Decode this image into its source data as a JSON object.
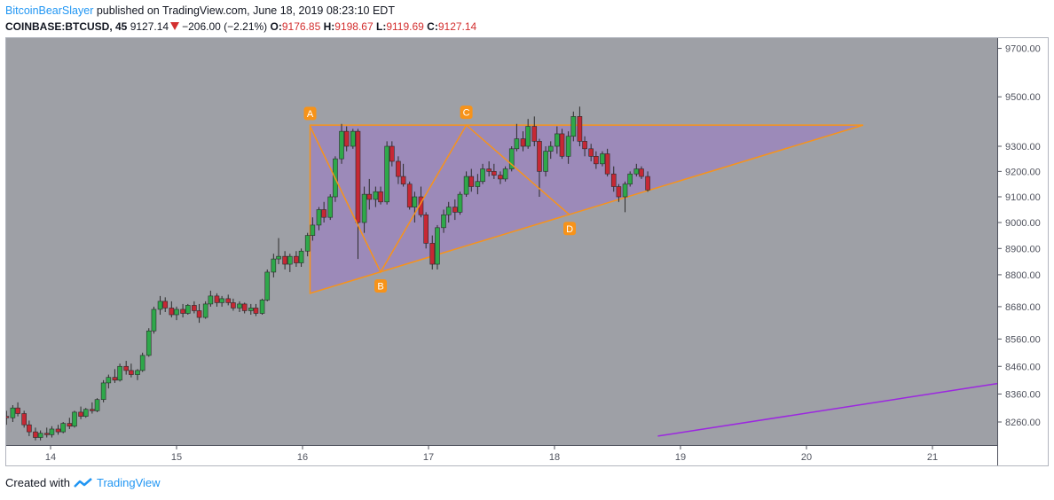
{
  "header": {
    "author": "BitcoinBearSlayer",
    "published_text": "published on TradingView.com, June 18, 2019 08:23:10 EDT",
    "symbol": "COINBASE:BTCUSD, 45",
    "price": "9127.14",
    "change": "−206.00 (−2.21%)",
    "open_label": "O:",
    "open": "9176.85",
    "high_label": "H:",
    "high": "9198.67",
    "low_label": "L:",
    "low": "9119.69",
    "close_label": "C:",
    "close": "9127.14"
  },
  "footer": {
    "created_with": "Created with",
    "brand": "TradingView"
  },
  "chart_data": {
    "type": "candlestick",
    "x_ticks": [
      "14",
      "15",
      "16",
      "17",
      "18",
      "19",
      "20",
      "21"
    ],
    "x_tick_days": [
      14,
      15,
      16,
      17,
      18,
      19,
      20,
      21
    ],
    "x_range": [
      13.65,
      21.55
    ],
    "y_ticks": [
      8260,
      8360,
      8460,
      8560,
      8680,
      8800,
      8900,
      9000,
      9100,
      9200,
      9300,
      9500,
      9700
    ],
    "y_tick_labels": [
      "8260.00",
      "8360.00",
      "8460.00",
      "8560.00",
      "8680.00",
      "8800.00",
      "8900.00",
      "9000.00",
      "9100.00",
      "9200.00",
      "9300.00",
      "9500.00",
      "9700.00"
    ],
    "scale": "log",
    "grid": false,
    "colors": {
      "background": "#9ea0a6",
      "up": "#2ea84a",
      "down": "#c62834",
      "pattern": "#f7931a",
      "fill": "#9a6fd0",
      "trendline": "#9c27e0"
    },
    "pattern_points": [
      {
        "label": "A",
        "day": 16.06,
        "price": 9380
      },
      {
        "label": "B",
        "day": 16.62,
        "price": 8810
      },
      {
        "label": "C",
        "day": 17.3,
        "price": 9385
      },
      {
        "label": "D",
        "day": 18.12,
        "price": 9030
      }
    ],
    "triangle": [
      {
        "day": 16.06,
        "price": 9385
      },
      {
        "day": 20.45,
        "price": 9385
      },
      {
        "day": 16.06,
        "price": 8730
      }
    ],
    "purple_trendline": [
      {
        "day": 18.82,
        "price": 8210
      },
      {
        "day": 21.55,
        "price": 8400
      }
    ],
    "candles": [
      [
        13.65,
        8280,
        8300,
        8250,
        8275
      ],
      [
        13.7,
        8275,
        8320,
        8260,
        8310
      ],
      [
        13.74,
        8310,
        8330,
        8280,
        8290
      ],
      [
        13.79,
        8290,
        8300,
        8240,
        8250
      ],
      [
        13.83,
        8250,
        8265,
        8210,
        8225
      ],
      [
        13.88,
        8225,
        8240,
        8195,
        8205
      ],
      [
        13.92,
        8205,
        8230,
        8195,
        8220
      ],
      [
        13.97,
        8220,
        8240,
        8205,
        8215
      ],
      [
        14.01,
        8215,
        8245,
        8205,
        8235
      ],
      [
        14.06,
        8235,
        8250,
        8215,
        8225
      ],
      [
        14.1,
        8225,
        8260,
        8220,
        8255
      ],
      [
        14.15,
        8255,
        8275,
        8235,
        8245
      ],
      [
        14.19,
        8245,
        8300,
        8240,
        8295
      ],
      [
        14.24,
        8295,
        8315,
        8270,
        8280
      ],
      [
        14.28,
        8280,
        8310,
        8275,
        8305
      ],
      [
        14.33,
        8305,
        8330,
        8290,
        8300
      ],
      [
        14.37,
        8300,
        8345,
        8295,
        8340
      ],
      [
        14.42,
        8340,
        8410,
        8330,
        8400
      ],
      [
        14.46,
        8400,
        8430,
        8380,
        8420
      ],
      [
        14.51,
        8420,
        8450,
        8400,
        8410
      ],
      [
        14.55,
        8410,
        8470,
        8405,
        8460
      ],
      [
        14.6,
        8460,
        8480,
        8430,
        8445
      ],
      [
        14.64,
        8445,
        8470,
        8420,
        8430
      ],
      [
        14.69,
        8430,
        8450,
        8410,
        8445
      ],
      [
        14.73,
        8445,
        8510,
        8440,
        8500
      ],
      [
        14.78,
        8500,
        8600,
        8495,
        8590
      ],
      [
        14.82,
        8590,
        8680,
        8580,
        8670
      ],
      [
        14.87,
        8670,
        8720,
        8650,
        8700
      ],
      [
        14.91,
        8700,
        8715,
        8660,
        8675
      ],
      [
        14.96,
        8675,
        8700,
        8640,
        8650
      ],
      [
        15.0,
        8650,
        8680,
        8630,
        8670
      ],
      [
        15.05,
        8670,
        8690,
        8640,
        8655
      ],
      [
        15.09,
        8655,
        8690,
        8650,
        8685
      ],
      [
        15.14,
        8685,
        8700,
        8655,
        8665
      ],
      [
        15.18,
        8665,
        8690,
        8620,
        8640
      ],
      [
        15.23,
        8640,
        8700,
        8635,
        8690
      ],
      [
        15.27,
        8690,
        8740,
        8680,
        8720
      ],
      [
        15.32,
        8720,
        8730,
        8680,
        8695
      ],
      [
        15.36,
        8695,
        8720,
        8680,
        8710
      ],
      [
        15.41,
        8710,
        8725,
        8685,
        8695
      ],
      [
        15.45,
        8695,
        8710,
        8665,
        8675
      ],
      [
        15.5,
        8675,
        8700,
        8660,
        8690
      ],
      [
        15.54,
        8690,
        8695,
        8655,
        8665
      ],
      [
        15.59,
        8665,
        8690,
        8650,
        8675
      ],
      [
        15.63,
        8675,
        8690,
        8645,
        8655
      ],
      [
        15.68,
        8655,
        8710,
        8650,
        8705
      ],
      [
        15.72,
        8705,
        8820,
        8700,
        8810
      ],
      [
        15.77,
        8810,
        8880,
        8790,
        8860
      ],
      [
        15.81,
        8860,
        8940,
        8840,
        8870
      ],
      [
        15.86,
        8870,
        8890,
        8820,
        8840
      ],
      [
        15.9,
        8840,
        8880,
        8810,
        8870
      ],
      [
        15.95,
        8870,
        8890,
        8830,
        8845
      ],
      [
        15.99,
        8845,
        8900,
        8830,
        8890
      ],
      [
        16.04,
        8890,
        8960,
        8870,
        8950
      ],
      [
        16.08,
        8950,
        9020,
        8930,
        8990
      ],
      [
        16.13,
        8990,
        9060,
        8970,
        9050
      ],
      [
        16.17,
        9050,
        9080,
        9000,
        9020
      ],
      [
        16.22,
        9020,
        9110,
        9010,
        9100
      ],
      [
        16.26,
        9100,
        9260,
        9080,
        9250
      ],
      [
        16.31,
        9250,
        9390,
        9230,
        9360
      ],
      [
        16.35,
        9360,
        9380,
        9280,
        9300
      ],
      [
        16.4,
        9300,
        9370,
        9290,
        9360
      ],
      [
        16.44,
        9360,
        9370,
        8860,
        9000
      ],
      [
        16.49,
        9000,
        9140,
        8960,
        9110
      ],
      [
        16.53,
        9110,
        9170,
        9050,
        9090
      ],
      [
        16.58,
        9090,
        9140,
        9060,
        9120
      ],
      [
        16.62,
        9120,
        9140,
        9070,
        9080
      ],
      [
        16.67,
        9080,
        9320,
        9070,
        9300
      ],
      [
        16.71,
        9300,
        9320,
        9220,
        9240
      ],
      [
        16.76,
        9240,
        9260,
        9150,
        9180
      ],
      [
        16.8,
        9180,
        9230,
        9140,
        9150
      ],
      [
        16.85,
        9150,
        9160,
        9050,
        9060
      ],
      [
        16.89,
        9060,
        9120,
        9000,
        9100
      ],
      [
        16.94,
        9100,
        9140,
        9020,
        9030
      ],
      [
        16.98,
        9030,
        9040,
        8900,
        8920
      ],
      [
        17.03,
        8920,
        8950,
        8820,
        8840
      ],
      [
        17.07,
        8840,
        8990,
        8820,
        8980
      ],
      [
        17.12,
        8980,
        9050,
        8960,
        9030
      ],
      [
        17.16,
        9030,
        9080,
        9000,
        9060
      ],
      [
        17.21,
        9060,
        9090,
        9010,
        9040
      ],
      [
        17.25,
        9040,
        9120,
        9030,
        9110
      ],
      [
        17.3,
        9110,
        9200,
        9100,
        9180
      ],
      [
        17.34,
        9180,
        9210,
        9120,
        9140
      ],
      [
        17.39,
        9140,
        9190,
        9110,
        9160
      ],
      [
        17.43,
        9160,
        9230,
        9150,
        9210
      ],
      [
        17.48,
        9210,
        9240,
        9180,
        9200
      ],
      [
        17.52,
        9200,
        9230,
        9170,
        9185
      ],
      [
        17.57,
        9185,
        9200,
        9150,
        9170
      ],
      [
        17.61,
        9170,
        9220,
        9160,
        9210
      ],
      [
        17.66,
        9210,
        9300,
        9200,
        9290
      ],
      [
        17.7,
        9290,
        9390,
        9280,
        9330
      ],
      [
        17.75,
        9330,
        9360,
        9280,
        9300
      ],
      [
        17.79,
        9300,
        9410,
        9290,
        9380
      ],
      [
        17.84,
        9380,
        9420,
        9300,
        9320
      ],
      [
        17.88,
        9320,
        9330,
        9100,
        9200
      ],
      [
        17.93,
        9200,
        9300,
        9180,
        9280
      ],
      [
        17.97,
        9280,
        9320,
        9250,
        9300
      ],
      [
        18.02,
        9300,
        9380,
        9270,
        9350
      ],
      [
        18.06,
        9350,
        9370,
        9250,
        9260
      ],
      [
        18.11,
        9260,
        9360,
        9230,
        9340
      ],
      [
        18.15,
        9340,
        9440,
        9320,
        9420
      ],
      [
        18.2,
        9420,
        9460,
        9300,
        9320
      ],
      [
        18.24,
        9320,
        9340,
        9260,
        9290
      ],
      [
        18.29,
        9290,
        9310,
        9240,
        9260
      ],
      [
        18.33,
        9260,
        9280,
        9210,
        9230
      ],
      [
        18.38,
        9230,
        9280,
        9220,
        9270
      ],
      [
        18.42,
        9270,
        9290,
        9180,
        9190
      ],
      [
        18.47,
        9190,
        9220,
        9120,
        9140
      ],
      [
        18.51,
        9140,
        9150,
        9080,
        9100
      ],
      [
        18.56,
        9100,
        9160,
        9040,
        9150
      ],
      [
        18.6,
        9150,
        9200,
        9140,
        9190
      ],
      [
        18.65,
        9190,
        9230,
        9180,
        9210
      ],
      [
        18.69,
        9210,
        9220,
        9170,
        9180
      ],
      [
        18.74,
        9180,
        9200,
        9120,
        9127
      ]
    ]
  }
}
